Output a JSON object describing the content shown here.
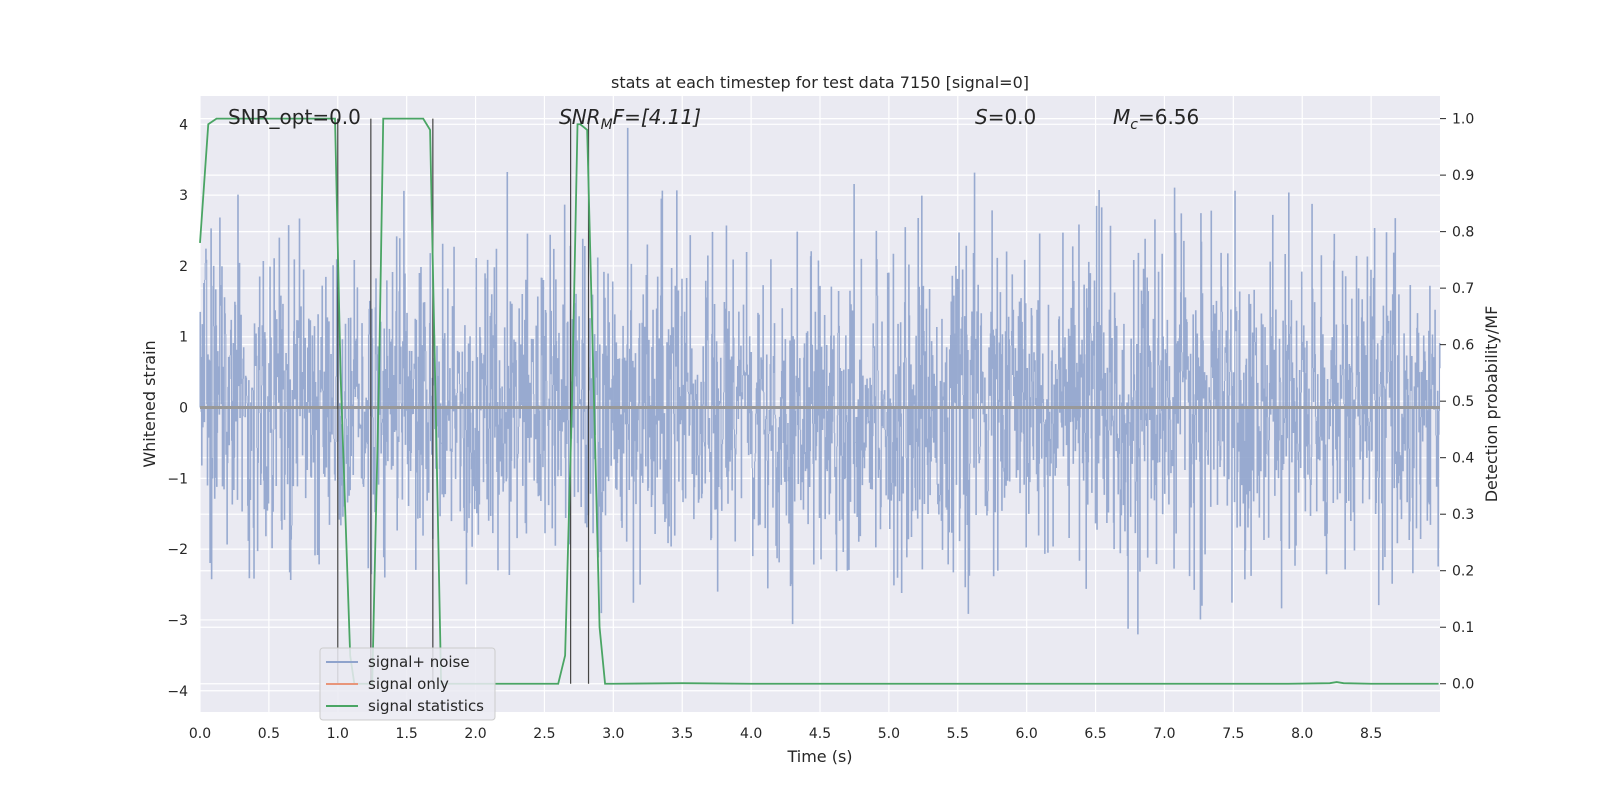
{
  "chart_data": {
    "type": "line",
    "title": "stats at each timestep for test data 7150 [signal=0]",
    "xlabel": "Time (s)",
    "ylabel": "Whitened strain",
    "y2label": "Detection probability/MF",
    "xlim": [
      0,
      9.0
    ],
    "ylim": [
      -4.3,
      4.4
    ],
    "y2lim": [
      -0.05,
      1.04
    ],
    "xticks": [
      "0.0",
      "0.5",
      "1.0",
      "1.5",
      "2.0",
      "2.5",
      "3.0",
      "3.5",
      "4.0",
      "4.5",
      "5.0",
      "5.5",
      "6.0",
      "6.5",
      "7.0",
      "7.5",
      "8.0",
      "8.5"
    ],
    "yticks": [
      "4",
      "3",
      "2",
      "1",
      "0",
      "−1",
      "−2",
      "−3",
      "−4"
    ],
    "y2ticks": [
      "1.0",
      "0.9",
      "0.8",
      "0.7",
      "0.6",
      "0.5",
      "0.4",
      "0.3",
      "0.2",
      "0.1",
      "0.0"
    ],
    "grid": true,
    "legend_position": "lower-left",
    "annotations": {
      "snr_opt": "SNR_opt=0.0",
      "snr_mf_main": "SNR",
      "snr_mf_sub": "M",
      "snr_mf_tail": "F=[4.11]",
      "s_main": "S",
      "s_tail": "=0.0",
      "mc_main": "M",
      "mc_sub": "c",
      "mc_tail": "=6.56"
    },
    "vertical_lines_x": [
      1.0,
      1.24,
      1.69,
      2.69,
      2.82
    ],
    "series": [
      {
        "name": "signal+ noise",
        "color": "#8fa3cc",
        "style": "dense-noise",
        "sigma": 1.0,
        "peak_envelope": [
          3.8,
          -3.7
        ]
      },
      {
        "name": "signal only",
        "color": "#e8957a",
        "values_constant": 0.0
      },
      {
        "name": "signal statistics",
        "color": "#4aa564",
        "axis": "right",
        "x": [
          0.0,
          0.06,
          0.12,
          0.3,
          0.6,
          0.9,
          0.98,
          1.02,
          1.09,
          1.12,
          1.2,
          1.25,
          1.3,
          1.33,
          1.5,
          1.62,
          1.67,
          1.71,
          1.75,
          1.8,
          2.0,
          2.3,
          2.6,
          2.65,
          2.7,
          2.74,
          2.76,
          2.81,
          2.86,
          2.9,
          2.94,
          3.0,
          3.5,
          4.0,
          4.5,
          5.0,
          5.5,
          6.0,
          6.5,
          7.0,
          7.5,
          7.9,
          8.2,
          8.25,
          8.3,
          8.5,
          8.99
        ],
        "values": [
          0.78,
          0.99,
          1.0,
          1.0,
          1.0,
          1.0,
          1.0,
          0.55,
          0.05,
          0.0,
          0.0,
          0.0,
          0.55,
          1.0,
          1.0,
          1.0,
          0.98,
          0.5,
          0.0,
          0.0,
          0.0,
          0.0,
          0.0,
          0.05,
          0.5,
          0.99,
          0.99,
          0.98,
          0.5,
          0.1,
          0.0,
          0.0,
          0.001,
          0.0,
          0.0,
          0.0,
          0.0,
          0.0,
          0.0,
          0.0,
          0.0,
          0.0,
          0.001,
          0.003,
          0.001,
          0.0,
          0.0
        ]
      }
    ]
  }
}
